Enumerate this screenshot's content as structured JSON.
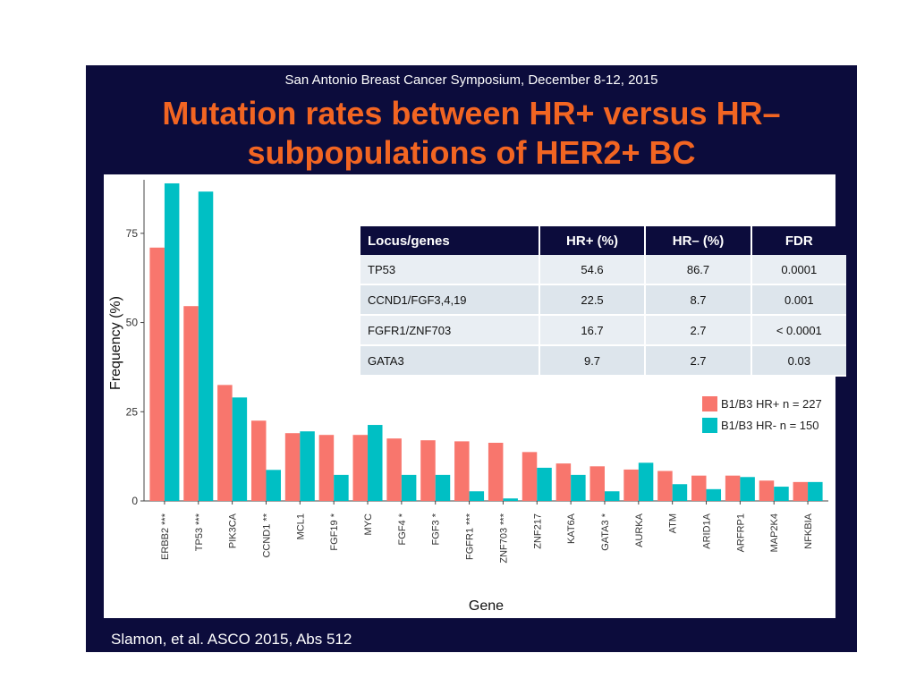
{
  "slide": {
    "header": "San Antonio Breast Cancer Symposium, December 8-12, 2015",
    "title_line1": "Mutation rates between HR+ versus HR–",
    "title_line2": "subpopulations of HER2+ BC",
    "footer": "Slamon, et al. ASCO 2015, Abs 512"
  },
  "colors": {
    "background": "#0c0c3c",
    "title": "#f26522",
    "hr_pos": "#f8766d",
    "hr_neg": "#00bfc4"
  },
  "table": {
    "headers": [
      "Locus/genes",
      "HR+ (%)",
      "HR– (%)",
      "FDR"
    ],
    "rows": [
      [
        "TP53",
        "54.6",
        "86.7",
        "0.0001"
      ],
      [
        "CCND1/FGF3,4,19",
        "22.5",
        "8.7",
        "0.001"
      ],
      [
        "FGFR1/ZNF703",
        "16.7",
        "2.7",
        "< 0.0001"
      ],
      [
        "GATA3",
        "9.7",
        "2.7",
        "0.03"
      ]
    ]
  },
  "chart_data": {
    "type": "bar",
    "xlabel": "Gene",
    "ylabel": "Frequency (%)",
    "ylim": [
      0,
      90
    ],
    "yticks": [
      0,
      25,
      50,
      75
    ],
    "grid": false,
    "legend_position": "right",
    "categories": [
      "ERBB2 ***",
      "TP53 ***",
      "PIK3CA",
      "CCND1 **",
      "MCL1",
      "FGF19 *",
      "MYC",
      "FGF4 *",
      "FGF3 *",
      "FGFR1 ***",
      "ZNF703 ***",
      "ZNF217",
      "KAT6A",
      "GATA3 *",
      "AURKA",
      "ATM",
      "ARID1A",
      "ARFRP1",
      "MAP2K4",
      "NFKBIA"
    ],
    "series": [
      {
        "name": "B1/B3 HR+ n = 227",
        "values": [
          71,
          54.6,
          32.5,
          22.5,
          19,
          18.5,
          18.5,
          17.5,
          17,
          16.7,
          16.3,
          13.7,
          10.5,
          9.7,
          8.8,
          8.4,
          7.1,
          7.1,
          5.7,
          5.3
        ]
      },
      {
        "name": "B1/B3 HR- n = 150",
        "values": [
          89,
          86.7,
          29,
          8.7,
          19.5,
          7.3,
          21.3,
          7.3,
          7.3,
          2.7,
          0.7,
          9.3,
          7.3,
          2.7,
          10.7,
          4.7,
          3.3,
          6.7,
          4,
          5.3
        ]
      }
    ]
  }
}
